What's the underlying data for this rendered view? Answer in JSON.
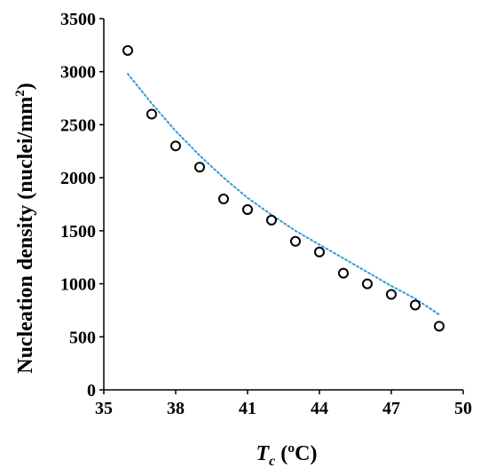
{
  "chart_data": {
    "type": "scatter",
    "xlabel": {
      "base": "T",
      "sub": "c",
      "unit": "(ºC)"
    },
    "ylabel": {
      "text": "Nucleation density (nuclei/mm",
      "sup": "2",
      "close": ")"
    },
    "xlim": [
      35,
      50
    ],
    "ylim": [
      0,
      3500
    ],
    "xticks": [
      "35",
      "38",
      "41",
      "44",
      "47",
      "50"
    ],
    "yticks": [
      "0",
      "500",
      "1000",
      "1500",
      "2000",
      "2500",
      "3000",
      "3500"
    ],
    "series": [
      {
        "marker": "open-circle",
        "x": [
          36,
          37,
          38,
          39,
          40,
          41,
          42,
          43,
          44,
          45,
          46,
          47,
          48,
          49
        ],
        "y": [
          3200,
          2600,
          2300,
          2100,
          1800,
          1700,
          1600,
          1400,
          1300,
          1100,
          1000,
          900,
          800,
          600
        ]
      }
    ],
    "trendline": {
      "style": "dotted",
      "color": "#2e9bd6",
      "x": [
        36,
        37,
        38,
        39,
        40,
        41,
        42,
        43,
        44,
        45,
        46,
        47,
        48,
        49
      ],
      "y": [
        2980,
        2700,
        2440,
        2210,
        2000,
        1810,
        1650,
        1500,
        1370,
        1240,
        1110,
        980,
        860,
        710
      ]
    },
    "marker_color": "#000000",
    "grid": false
  }
}
